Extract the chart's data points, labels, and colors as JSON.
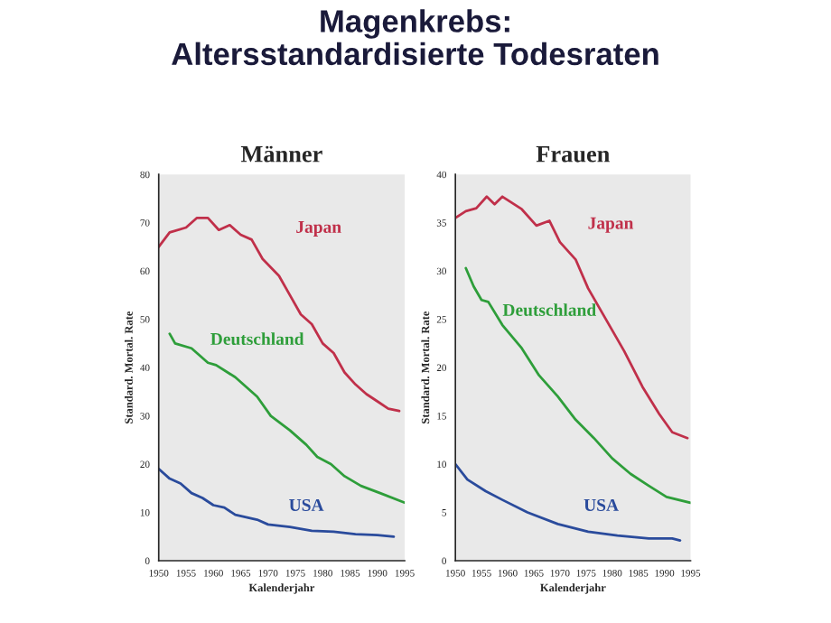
{
  "chart_data": [
    {
      "type": "line",
      "title": "Männer",
      "xlabel": "Kalenderjahr",
      "ylabel": "Standard. Mortal. Rate",
      "annotations": [
        "Magenkrebs:\nAltersstandardisierte Todesraten"
      ],
      "xlim": [
        1950,
        1995
      ],
      "xticks": [
        1950,
        1955,
        1960,
        1965,
        1970,
        1975,
        1980,
        1985,
        1990,
        1995
      ],
      "ylim": [
        0,
        80
      ],
      "yticks": [
        0,
        10,
        20,
        30,
        40,
        50,
        60,
        70,
        80
      ],
      "grid": false,
      "legend": false,
      "marker": "none",
      "line_style": "solid",
      "series": [
        {
          "name": "Japan",
          "color": "#c0304a",
          "x": [
            1950,
            1952,
            1955,
            1957,
            1959,
            1961,
            1963,
            1965,
            1967,
            1969,
            1972,
            1974,
            1976,
            1978,
            1980,
            1982,
            1984,
            1986,
            1988,
            1990,
            1992,
            1994
          ],
          "values": [
            65,
            68,
            69,
            71,
            71,
            68.5,
            69.5,
            67.5,
            66.5,
            62.5,
            59,
            55,
            51,
            49,
            45,
            43,
            39,
            36.5,
            34.5,
            33,
            31.5,
            31
          ]
        },
        {
          "name": "Deutschland",
          "color": "#2e9e3a",
          "x": [
            1952,
            1953,
            1956,
            1959,
            1960.5,
            1964,
            1966,
            1968,
            1970.5,
            1974,
            1977,
            1979,
            1981.5,
            1984,
            1987,
            1990.5,
            1995
          ],
          "values": [
            47,
            45,
            44,
            41,
            40.5,
            38,
            36,
            34,
            30,
            27,
            24,
            21.5,
            20,
            17.5,
            15.5,
            14,
            12
          ]
        },
        {
          "name": "USA",
          "color": "#2a4b9c",
          "x": [
            1950,
            1952,
            1954,
            1956,
            1958,
            1960,
            1962,
            1964,
            1966,
            1968,
            1970,
            1974,
            1978,
            1982,
            1986,
            1990,
            1993
          ],
          "values": [
            19,
            17,
            16,
            14,
            13,
            11.5,
            11,
            9.5,
            9,
            8.5,
            7.5,
            7,
            6.2,
            6,
            5.5,
            5.3,
            5
          ]
        }
      ]
    },
    {
      "type": "line",
      "title": "Frauen",
      "xlabel": "Kalenderjahr",
      "ylabel": "Standard. Mortal. Rate",
      "xlim": [
        1950,
        1995
      ],
      "xticks": [
        1950,
        1955,
        1960,
        1965,
        1970,
        1975,
        1980,
        1985,
        1990,
        1995
      ],
      "ylim": [
        0,
        40
      ],
      "yticks": [
        0,
        5,
        10,
        15,
        20,
        25,
        30,
        35,
        40
      ],
      "grid": false,
      "legend": false,
      "marker": "none",
      "line_style": "solid",
      "series": [
        {
          "name": "Japan",
          "color": "#c0304a",
          "x": [
            1950,
            1952,
            1954,
            1956,
            1957.5,
            1959,
            1962.7,
            1965.5,
            1968,
            1970,
            1973,
            1975.4,
            1978.8,
            1982.3,
            1985.8,
            1989,
            1991.5,
            1994.4
          ],
          "values": [
            35.5,
            36.2,
            36.5,
            37.7,
            36.9,
            37.7,
            36.4,
            34.7,
            35.2,
            33,
            31.2,
            28.2,
            25,
            21.7,
            18,
            15.2,
            13.3,
            12.7
          ]
        },
        {
          "name": "Deutschland",
          "color": "#2e9e3a",
          "x": [
            1952,
            1953.5,
            1955,
            1956.3,
            1959,
            1962.7,
            1966,
            1969.6,
            1973,
            1976.5,
            1980,
            1983.5,
            1986.9,
            1990.4,
            1995
          ],
          "values": [
            30.3,
            28.4,
            27,
            26.8,
            24.4,
            22,
            19.2,
            17,
            14.6,
            12.7,
            10.6,
            9,
            7.8,
            6.6,
            6
          ]
        },
        {
          "name": "USA",
          "color": "#2a4b9c",
          "x": [
            1950,
            1952.3,
            1955.8,
            1959,
            1963.8,
            1969.6,
            1975.4,
            1981,
            1987,
            1991.5,
            1993
          ],
          "values": [
            10,
            8.4,
            7.2,
            6.3,
            5,
            3.8,
            3,
            2.6,
            2.3,
            2.3,
            2.1
          ]
        }
      ]
    }
  ]
}
